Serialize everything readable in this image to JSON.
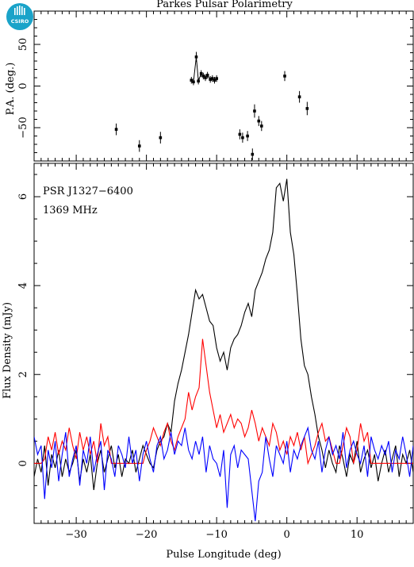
{
  "logo": {
    "text": "CSIRO",
    "color": "#1aa3c9"
  },
  "chart_data": [
    {
      "type": "scatter",
      "title": "Parkes Pulsar Polarimetry",
      "ylabel": "P.A. (deg.)",
      "xlim": [
        -36,
        18
      ],
      "ylim": [
        -90,
        90
      ],
      "y_ticks": [
        -50,
        0,
        50
      ],
      "x_ticks": [
        -30,
        -20,
        -10,
        0,
        10
      ],
      "grid": false,
      "points": [
        {
          "x": -24.3,
          "y": -52,
          "err": 7
        },
        {
          "x": -21.0,
          "y": -72,
          "err": 7
        },
        {
          "x": -18.0,
          "y": -62,
          "err": 7
        },
        {
          "x": -13.6,
          "y": 7,
          "err": 4
        },
        {
          "x": -13.3,
          "y": 5,
          "err": 4
        },
        {
          "x": -12.9,
          "y": 35,
          "err": 6
        },
        {
          "x": -12.6,
          "y": 6,
          "err": 4
        },
        {
          "x": -12.2,
          "y": 15,
          "err": 4
        },
        {
          "x": -11.9,
          "y": 12,
          "err": 4
        },
        {
          "x": -11.6,
          "y": 10,
          "err": 4
        },
        {
          "x": -11.3,
          "y": 13,
          "err": 4
        },
        {
          "x": -10.9,
          "y": 8,
          "err": 4
        },
        {
          "x": -10.6,
          "y": 9,
          "err": 4
        },
        {
          "x": -10.3,
          "y": 7,
          "err": 4
        },
        {
          "x": -10.0,
          "y": 9,
          "err": 4
        },
        {
          "x": -6.7,
          "y": -58,
          "err": 6
        },
        {
          "x": -6.3,
          "y": -62,
          "err": 6
        },
        {
          "x": -5.6,
          "y": -60,
          "err": 6
        },
        {
          "x": -4.9,
          "y": -82,
          "err": 7
        },
        {
          "x": -4.6,
          "y": -30,
          "err": 8
        },
        {
          "x": -4.0,
          "y": -42,
          "err": 6
        },
        {
          "x": -3.6,
          "y": -48,
          "err": 6
        },
        {
          "x": -0.3,
          "y": 12,
          "err": 6
        },
        {
          "x": 1.8,
          "y": -13,
          "err": 7
        },
        {
          "x": 2.9,
          "y": -27,
          "err": 8
        }
      ],
      "line_range": [
        -13.6,
        -10.0
      ]
    },
    {
      "type": "line",
      "xlabel": "Pulse Longitude (deg)",
      "ylabel": "Flux Density (mJy)",
      "xlim": [
        -36,
        18
      ],
      "ylim": [
        -1.35,
        6.75
      ],
      "x_ticks": [
        -30,
        -20,
        -10,
        0,
        10
      ],
      "y_ticks": [
        0,
        2,
        4,
        6
      ],
      "grid": false,
      "annotations": [
        "PSR J1327−6400",
        "1369 MHz"
      ],
      "x": [
        -36,
        -35.5,
        -35,
        -34.5,
        -34,
        -33.5,
        -33,
        -32.5,
        -32,
        -31.5,
        -31,
        -30.5,
        -30,
        -29.5,
        -29,
        -28.5,
        -28,
        -27.5,
        -27,
        -26.5,
        -26,
        -25.5,
        -25,
        -24.5,
        -24,
        -23.5,
        -23,
        -22.5,
        -22,
        -21.5,
        -21,
        -20.5,
        -20,
        -19.5,
        -19,
        -18.5,
        -18,
        -17.5,
        -17,
        -16.5,
        -16,
        -15.5,
        -15,
        -14.5,
        -14,
        -13.5,
        -13,
        -12.5,
        -12,
        -11.5,
        -11,
        -10.5,
        -10,
        -9.5,
        -9,
        -8.5,
        -8,
        -7.5,
        -7,
        -6.5,
        -6,
        -5.5,
        -5,
        -4.5,
        -4,
        -3.5,
        -3,
        -2.5,
        -2,
        -1.5,
        -1,
        -0.5,
        0,
        0.5,
        1,
        1.5,
        2,
        2.5,
        3,
        3.5,
        4,
        4.5,
        5,
        5.5,
        6,
        6.5,
        7,
        7.5,
        8,
        8.5,
        9,
        9.5,
        10,
        10.5,
        11,
        11.5,
        12,
        12.5,
        13,
        13.5,
        14,
        14.5,
        15,
        15.5,
        16,
        16.5,
        17,
        17.5,
        18
      ],
      "series": [
        {
          "color": "#000000",
          "values": [
            -0.3,
            0.1,
            -0.2,
            0.4,
            -0.5,
            0.2,
            -0.1,
            0.3,
            -0.3,
            0.1,
            -0.2,
            0.0,
            0.3,
            -0.4,
            0.1,
            -0.2,
            0.2,
            -0.6,
            0.0,
            0.3,
            -0.2,
            0.1,
            0.4,
            -0.1,
            0.2,
            -0.3,
            0.1,
            0.0,
            0.3,
            -0.2,
            0.1,
            0.4,
            0.2,
            0.0,
            -0.1,
            0.3,
            0.5,
            0.6,
            0.9,
            0.7,
            1.4,
            1.8,
            2.1,
            2.5,
            2.9,
            3.4,
            3.9,
            3.7,
            3.8,
            3.5,
            3.2,
            3.1,
            2.6,
            2.3,
            2.5,
            2.1,
            2.6,
            2.8,
            2.9,
            3.1,
            3.4,
            3.6,
            3.3,
            3.9,
            4.1,
            4.3,
            4.6,
            4.8,
            5.2,
            6.2,
            6.3,
            5.9,
            6.4,
            5.2,
            4.7,
            3.8,
            2.8,
            2.2,
            2.0,
            1.5,
            1.1,
            0.6,
            0.3,
            -0.1,
            0.3,
            0.0,
            -0.2,
            0.4,
            0.1,
            -0.3,
            0.2,
            0.0,
            0.5,
            -0.2,
            0.1,
            0.3,
            -0.1,
            0.2,
            -0.4,
            0.0,
            0.3,
            -0.2,
            0.1,
            0.4,
            -0.3,
            0.2,
            0.0,
            0.3,
            -0.2
          ]
        },
        {
          "color": "#ff0000",
          "values": [
            0,
            0,
            0,
            0.1,
            0.6,
            0.3,
            0.7,
            0.2,
            0.5,
            0.3,
            0.8,
            0.4,
            0.1,
            0.7,
            0.3,
            0.6,
            0.2,
            0.5,
            0.0,
            0.9,
            0.4,
            0.6,
            0.0,
            0.0,
            0.0,
            0.0,
            0.0,
            0.0,
            0.0,
            0.0,
            0.0,
            0.0,
            0.3,
            0.5,
            0.8,
            0.6,
            0.4,
            0.7,
            0.9,
            0.5,
            0.3,
            0.6,
            0.8,
            1.0,
            1.6,
            1.2,
            1.5,
            1.7,
            2.8,
            2.2,
            1.6,
            1.2,
            0.8,
            1.1,
            0.7,
            0.9,
            1.1,
            0.8,
            1.0,
            0.9,
            0.6,
            0.8,
            1.2,
            0.9,
            0.5,
            0.8,
            0.6,
            0.4,
            0.9,
            0.7,
            0.3,
            0.5,
            0.2,
            0.6,
            0.4,
            0.7,
            0.3,
            0.6,
            0.0,
            0.2,
            0.4,
            0.7,
            0.9,
            0.5,
            0.6,
            0.3,
            0.0,
            0.0,
            0.4,
            0.8,
            0.6,
            0.0,
            0.3,
            0.9,
            0.5,
            0.7,
            0.0,
            0.0,
            0.0,
            0.0,
            0.0,
            0.0,
            0.0,
            0.0,
            0.0,
            0.0,
            0.0,
            0.0,
            0.0
          ]
        },
        {
          "color": "#0000ff",
          "values": [
            0.6,
            0.2,
            0.4,
            -0.8,
            0.3,
            -0.1,
            0.5,
            -0.4,
            0.2,
            0.7,
            -0.3,
            0.1,
            0.4,
            -0.5,
            0.3,
            0.0,
            0.6,
            -0.2,
            0.2,
            0.5,
            -0.6,
            0.3,
            0.1,
            -0.3,
            0.4,
            0.2,
            -0.1,
            0.6,
            0.0,
            0.3,
            -0.4,
            0.2,
            0.5,
            0.1,
            -0.2,
            0.4,
            0.6,
            0.1,
            0.3,
            0.7,
            0.2,
            0.5,
            0.4,
            0.8,
            0.3,
            0.1,
            0.5,
            0.2,
            0.6,
            -0.2,
            0.4,
            0.1,
            0.0,
            -0.3,
            0.3,
            -1.0,
            0.2,
            0.4,
            -0.1,
            0.3,
            0.2,
            0.1,
            -0.6,
            -1.3,
            -0.4,
            -0.2,
            0.6,
            0.1,
            -0.3,
            0.4,
            0.2,
            0.0,
            0.5,
            -0.2,
            0.3,
            0.1,
            0.4,
            0.6,
            0.8,
            0.3,
            0.1,
            0.5,
            -0.2,
            0.3,
            0.6,
            0.2,
            0.4,
            0.1,
            0.7,
            -0.1,
            0.3,
            0.5,
            0.2,
            0.0,
            0.4,
            -0.3,
            0.6,
            0.3,
            0.1,
            0.4,
            0.2,
            0.5,
            -0.2,
            0.3,
            0.1,
            0.6,
            0.2,
            -0.3,
            0.4
          ]
        }
      ]
    }
  ]
}
